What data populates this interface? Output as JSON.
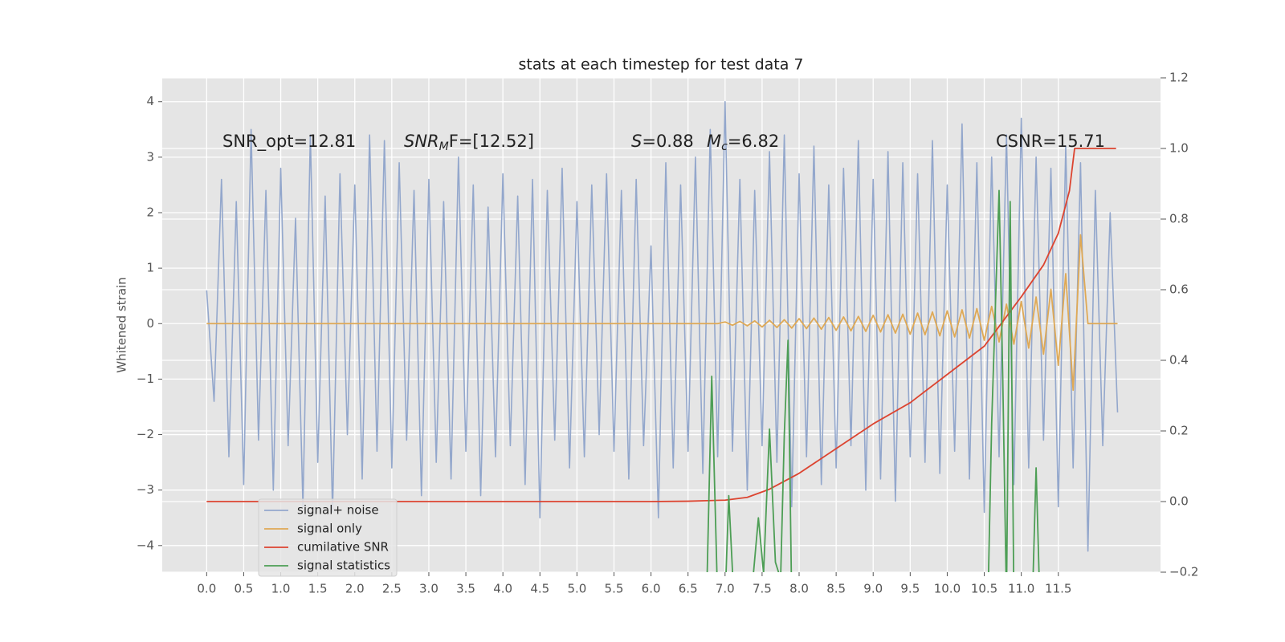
{
  "chart_data": {
    "type": "line",
    "title": "stats at each timestep for test data 7",
    "ylabel": "Whitened strain",
    "annotations": [
      [
        "SNR_opt=12.81"
      ],
      [
        "SNR",
        "M",
        "F=[12.52]"
      ],
      [
        "S",
        "=0.88"
      ],
      [
        "M",
        "c",
        "=6.82"
      ],
      [
        "CSNR=15.71"
      ]
    ],
    "xlim": [
      -0.6,
      12.88
    ],
    "ylim": [
      -4.48,
      4.43
    ],
    "y2lim": [
      -0.2,
      1.2
    ],
    "xticks": [
      {
        "value": 0,
        "label": "0.0"
      },
      {
        "value": 0.5,
        "label": "0.5"
      },
      {
        "value": 1,
        "label": "1.0"
      },
      {
        "value": 1.5,
        "label": "1.5"
      },
      {
        "value": 2,
        "label": "2.0"
      },
      {
        "value": 2.5,
        "label": "2.5"
      },
      {
        "value": 3,
        "label": "3.0"
      },
      {
        "value": 3.5,
        "label": "3.5"
      },
      {
        "value": 4,
        "label": "4.0"
      },
      {
        "value": 4.5,
        "label": "4.5"
      },
      {
        "value": 5,
        "label": "5.0"
      },
      {
        "value": 5.5,
        "label": "5.5"
      },
      {
        "value": 6,
        "label": "6.0"
      },
      {
        "value": 6.5,
        "label": "6.5"
      },
      {
        "value": 7,
        "label": "7.0"
      },
      {
        "value": 7.5,
        "label": "7.5"
      },
      {
        "value": 8,
        "label": "8.0"
      },
      {
        "value": 8.5,
        "label": "8.5"
      },
      {
        "value": 9,
        "label": "9.0"
      },
      {
        "value": 9.5,
        "label": "9.5"
      },
      {
        "value": 10,
        "label": "10.0"
      },
      {
        "value": 10.5,
        "label": "10.5"
      },
      {
        "value": 11,
        "label": "11.0"
      },
      {
        "value": 11.5,
        "label": "11.5"
      }
    ],
    "yticks": [
      4,
      3,
      2,
      1,
      0,
      {
        "value": -1,
        "label": "−1"
      },
      {
        "value": -2,
        "label": "−2"
      },
      {
        "value": -3,
        "label": "−3"
      },
      {
        "value": -4,
        "label": "−4"
      }
    ],
    "y2ticks": [
      {
        "value": 1.2,
        "label": "1.2"
      },
      {
        "value": 1,
        "label": "1.0"
      },
      {
        "value": 0.8,
        "label": "0.8"
      },
      {
        "value": 0.6,
        "label": "0.6"
      },
      {
        "value": 0.4,
        "label": "0.4"
      },
      {
        "value": 0.2,
        "label": "0.2"
      },
      {
        "value": 0,
        "label": "0.0"
      },
      {
        "value": -0.2,
        "label": "−0.2"
      }
    ],
    "grid": true,
    "legend": "lower left",
    "series": [
      {
        "name": "signal+ noise",
        "color": "#93a7cc",
        "x": [
          0.0,
          0.1,
          0.2,
          0.3,
          0.4,
          0.5,
          0.6,
          0.7,
          0.8,
          0.9,
          1.0,
          1.1,
          1.2,
          1.3,
          1.4,
          1.5,
          1.6,
          1.7,
          1.8,
          1.9,
          2.0,
          2.1,
          2.2,
          2.3,
          2.4,
          2.5,
          2.6,
          2.7,
          2.8,
          2.9,
          3.0,
          3.1,
          3.2,
          3.3,
          3.4,
          3.5,
          3.6,
          3.7,
          3.8,
          3.9,
          4.0,
          4.1,
          4.2,
          4.3,
          4.4,
          4.5,
          4.6,
          4.7,
          4.8,
          4.9,
          5.0,
          5.1,
          5.2,
          5.3,
          5.4,
          5.5,
          5.6,
          5.7,
          5.8,
          5.9,
          6.0,
          6.1,
          6.2,
          6.3,
          6.4,
          6.5,
          6.6,
          6.7,
          6.8,
          6.9,
          7.0,
          7.1,
          7.2,
          7.3,
          7.4,
          7.5,
          7.6,
          7.7,
          7.8,
          7.9,
          8.0,
          8.1,
          8.2,
          8.3,
          8.4,
          8.5,
          8.6,
          8.7,
          8.8,
          8.9,
          9.0,
          9.1,
          9.2,
          9.3,
          9.4,
          9.5,
          9.6,
          9.7,
          9.8,
          9.9,
          10.0,
          10.1,
          10.2,
          10.3,
          10.4,
          10.5,
          10.6,
          10.7,
          10.8,
          10.9,
          11.0,
          11.1,
          11.2,
          11.3,
          11.4,
          11.5,
          11.6,
          11.7,
          11.8,
          11.9,
          12.0,
          12.1,
          12.2,
          12.3
        ],
        "values": [
          0.6,
          -1.4,
          2.6,
          -2.4,
          2.2,
          -2.9,
          3.5,
          -2.1,
          2.4,
          -3.0,
          2.8,
          -2.2,
          1.9,
          -3.3,
          3.4,
          -2.5,
          2.3,
          -3.4,
          2.7,
          -2.0,
          2.5,
          -2.8,
          3.4,
          -2.3,
          3.3,
          -2.6,
          2.9,
          -2.1,
          2.4,
          -3.1,
          2.6,
          -2.5,
          2.2,
          -2.8,
          3.0,
          -2.3,
          2.5,
          -3.1,
          2.1,
          -2.4,
          2.7,
          -2.2,
          2.3,
          -2.9,
          2.6,
          -3.5,
          2.4,
          -2.1,
          2.8,
          -2.6,
          2.2,
          -2.4,
          2.5,
          -2.0,
          2.7,
          -2.3,
          2.4,
          -2.8,
          2.6,
          -2.2,
          1.4,
          -3.5,
          2.9,
          -2.6,
          2.5,
          -2.3,
          3.0,
          -2.7,
          3.5,
          -2.4,
          4.0,
          -2.3,
          2.6,
          -3.0,
          2.4,
          -2.2,
          3.1,
          -2.5,
          3.4,
          -3.3,
          2.7,
          -2.4,
          3.2,
          -2.9,
          2.5,
          -2.6,
          2.8,
          -2.2,
          3.3,
          -3.0,
          2.6,
          -2.8,
          3.1,
          -3.2,
          2.9,
          -2.4,
          2.7,
          -2.5,
          3.3,
          -2.7,
          2.5,
          -2.3,
          3.6,
          -2.8,
          2.9,
          -3.4,
          3.0,
          -2.4,
          3.4,
          -2.9,
          3.7,
          -2.6,
          3.0,
          -2.1,
          2.8,
          -3.3,
          3.2,
          -2.6,
          2.9,
          -4.1,
          2.4,
          -2.2,
          2.0,
          -1.6
        ]
      },
      {
        "name": "signal only",
        "color": "#dfa955",
        "x": [
          0.0,
          0.1,
          0.2,
          0.3,
          0.4,
          0.5,
          0.6,
          0.7,
          0.8,
          0.9,
          1.0,
          1.1,
          1.2,
          1.3,
          1.4,
          1.5,
          1.6,
          1.7,
          1.8,
          1.9,
          2.0,
          2.1,
          2.2,
          2.3,
          2.4,
          2.5,
          2.6,
          2.7,
          2.8,
          2.9,
          3.0,
          3.1,
          3.2,
          3.3,
          3.4,
          3.5,
          3.6,
          3.7,
          3.8,
          3.9,
          4.0,
          4.1,
          4.2,
          4.3,
          4.4,
          4.5,
          4.6,
          4.7,
          4.8,
          4.9,
          5.0,
          5.1,
          5.2,
          5.3,
          5.4,
          5.5,
          5.6,
          5.7,
          5.8,
          5.9,
          6.0,
          6.1,
          6.2,
          6.3,
          6.4,
          6.5,
          6.6,
          6.7,
          6.8,
          6.9,
          7.0,
          7.1,
          7.2,
          7.3,
          7.4,
          7.5,
          7.6,
          7.7,
          7.8,
          7.9,
          8.0,
          8.1,
          8.2,
          8.3,
          8.4,
          8.5,
          8.6,
          8.7,
          8.8,
          8.9,
          9.0,
          9.1,
          9.2,
          9.3,
          9.4,
          9.5,
          9.6,
          9.7,
          9.8,
          9.9,
          10.0,
          10.1,
          10.2,
          10.3,
          10.4,
          10.5,
          10.6,
          10.7,
          10.8,
          10.9,
          11.0,
          11.1,
          11.2,
          11.3,
          11.4,
          11.5,
          11.6,
          11.7,
          11.8,
          11.9,
          12.0,
          12.1,
          12.2,
          12.3
        ],
        "values": [
          0,
          0,
          0,
          0,
          0,
          0,
          0,
          0,
          0,
          0,
          0,
          0,
          0,
          0,
          0,
          0,
          0,
          0,
          0,
          0,
          0,
          0,
          0,
          0,
          0,
          0,
          0,
          0,
          0,
          0,
          0,
          0,
          0,
          0,
          0,
          0,
          0,
          0,
          0,
          0,
          0,
          0,
          0,
          0,
          0,
          0,
          0,
          0,
          0,
          0,
          0,
          0,
          0,
          0,
          0,
          0,
          0,
          0,
          0,
          0,
          0,
          0,
          0,
          0,
          0,
          0,
          0,
          0,
          0,
          0,
          0.03,
          -0.03,
          0.04,
          -0.04,
          0.05,
          -0.06,
          0.06,
          -0.07,
          0.07,
          -0.08,
          0.09,
          -0.09,
          0.1,
          -0.1,
          0.11,
          -0.12,
          0.12,
          -0.13,
          0.13,
          -0.14,
          0.15,
          -0.15,
          0.16,
          -0.17,
          0.17,
          -0.19,
          0.19,
          -0.2,
          0.21,
          -0.22,
          0.23,
          -0.24,
          0.25,
          -0.26,
          0.27,
          -0.3,
          0.31,
          -0.33,
          0.35,
          -0.37,
          0.4,
          -0.44,
          0.48,
          -0.55,
          0.62,
          -0.75,
          0.9,
          -1.2,
          1.6,
          0,
          0,
          0,
          0,
          0
        ]
      },
      {
        "name": "cumilative SNR",
        "color": "#dc4430",
        "axis": "y2",
        "x": [
          0,
          1,
          2,
          3,
          4,
          5,
          6,
          6.5,
          7.0,
          7.3,
          7.6,
          8.0,
          8.5,
          9.0,
          9.5,
          10.0,
          10.5,
          11.0,
          11.3,
          11.5,
          11.65,
          11.72,
          11.8,
          12.28
        ],
        "values": [
          0,
          0,
          0,
          0,
          0,
          0,
          0,
          0.001,
          0.004,
          0.012,
          0.035,
          0.08,
          0.15,
          0.22,
          0.28,
          0.36,
          0.44,
          0.58,
          0.67,
          0.76,
          0.88,
          1.0,
          1.0,
          1.0
        ]
      },
      {
        "name": "signal statistics",
        "color": "#4d9e55",
        "x": [
          6.75,
          6.82,
          6.9,
          7.0,
          7.05,
          7.12,
          7.35,
          7.45,
          7.52,
          7.6,
          7.68,
          7.75,
          7.8,
          7.85,
          7.9,
          10.55,
          10.6,
          10.7,
          10.75,
          10.8,
          10.85,
          10.9,
          11.15,
          11.2,
          11.25
        ],
        "values": [
          -5,
          -0.95,
          -5,
          -5,
          -3.1,
          -5,
          -5,
          -3.5,
          -4.5,
          -1.9,
          -4.3,
          -4.6,
          -2.0,
          -0.3,
          -5,
          -5,
          -1.8,
          2.4,
          -1,
          -5,
          2.2,
          -5,
          -5,
          -2.6,
          -5
        ]
      }
    ]
  }
}
